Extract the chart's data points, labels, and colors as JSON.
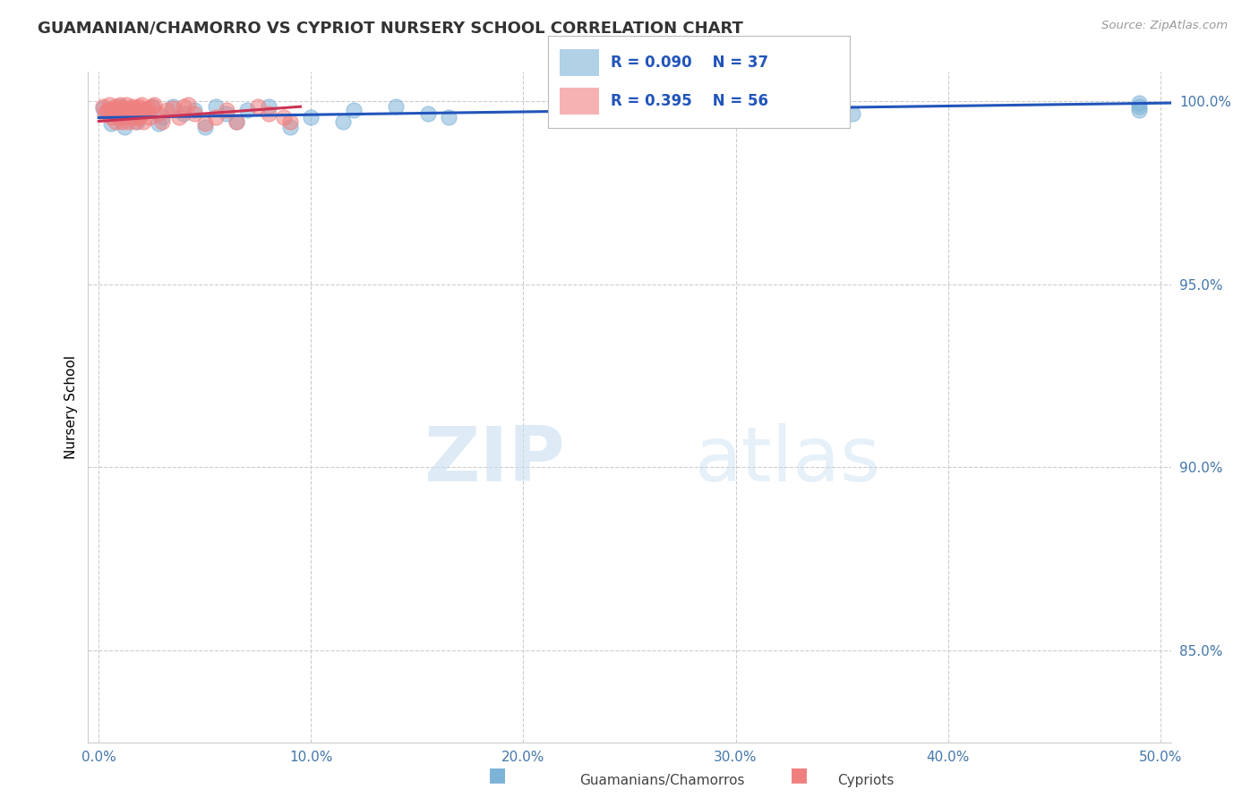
{
  "title": "GUAMANIAN/CHAMORRO VS CYPRIOT NURSERY SCHOOL CORRELATION CHART",
  "source_text": "Source: ZipAtlas.com",
  "ylabel": "Nursery School",
  "xlim": [
    -0.005,
    0.505
  ],
  "ylim": [
    0.825,
    1.008
  ],
  "xtick_labels": [
    "0.0%",
    "",
    "10.0%",
    "",
    "20.0%",
    "",
    "30.0%",
    "",
    "40.0%",
    "",
    "50.0%"
  ],
  "xtick_vals": [
    0.0,
    0.05,
    0.1,
    0.15,
    0.2,
    0.25,
    0.3,
    0.35,
    0.4,
    0.45,
    0.5
  ],
  "ytick_labels": [
    "85.0%",
    "90.0%",
    "95.0%",
    "100.0%"
  ],
  "ytick_vals": [
    0.85,
    0.9,
    0.95,
    1.0
  ],
  "blue_color": "#7EB3D8",
  "pink_color": "#F08080",
  "trend_blue": "#2255BB",
  "trend_pink": "#CC3355",
  "legend_r_blue": "R = 0.090",
  "legend_n_blue": "N = 37",
  "legend_r_pink": "R = 0.395",
  "legend_n_pink": "N = 56",
  "watermark_zip": "ZIP",
  "watermark_atlas": "atlas",
  "blue_points_x": [
    0.002,
    0.004,
    0.006,
    0.008,
    0.01,
    0.012,
    0.014,
    0.016,
    0.018,
    0.02,
    0.022,
    0.025,
    0.028,
    0.03,
    0.035,
    0.04,
    0.045,
    0.05,
    0.055,
    0.06,
    0.065,
    0.07,
    0.08,
    0.09,
    0.1,
    0.115,
    0.12,
    0.14,
    0.155,
    0.165,
    0.31,
    0.32,
    0.345,
    0.355,
    0.49,
    0.49,
    0.49
  ],
  "blue_points_y": [
    0.998,
    0.9965,
    0.994,
    0.997,
    0.9985,
    0.993,
    0.9975,
    0.9955,
    0.9945,
    0.9965,
    0.9975,
    0.9985,
    0.994,
    0.9955,
    0.9985,
    0.9965,
    0.9975,
    0.993,
    0.9985,
    0.9965,
    0.9945,
    0.9975,
    0.9985,
    0.993,
    0.9955,
    0.9945,
    0.9975,
    0.9985,
    0.9965,
    0.9955,
    0.9955,
    0.9975,
    0.9985,
    0.9965,
    0.9995,
    0.9975,
    0.9985
  ],
  "pink_points_x": [
    0.002,
    0.003,
    0.004,
    0.005,
    0.006,
    0.006,
    0.007,
    0.007,
    0.008,
    0.008,
    0.009,
    0.009,
    0.01,
    0.01,
    0.011,
    0.011,
    0.012,
    0.012,
    0.013,
    0.013,
    0.014,
    0.014,
    0.015,
    0.015,
    0.016,
    0.016,
    0.017,
    0.017,
    0.018,
    0.018,
    0.019,
    0.019,
    0.02,
    0.02,
    0.021,
    0.022,
    0.023,
    0.024,
    0.025,
    0.026,
    0.028,
    0.03,
    0.032,
    0.035,
    0.038,
    0.04,
    0.042,
    0.045,
    0.05,
    0.055,
    0.06,
    0.065,
    0.075,
    0.08,
    0.087,
    0.09
  ],
  "pink_points_y": [
    0.9985,
    0.9965,
    0.9975,
    0.999,
    0.9955,
    0.9975,
    0.998,
    0.9965,
    0.9945,
    0.9985,
    0.9955,
    0.9975,
    0.999,
    0.9965,
    0.9975,
    0.9945,
    0.998,
    0.9955,
    0.9975,
    0.999,
    0.9965,
    0.9945,
    0.998,
    0.9975,
    0.9955,
    0.9985,
    0.9965,
    0.9945,
    0.998,
    0.9975,
    0.9955,
    0.9985,
    0.999,
    0.9965,
    0.9945,
    0.9975,
    0.998,
    0.9955,
    0.9985,
    0.999,
    0.9965,
    0.9945,
    0.9975,
    0.998,
    0.9955,
    0.9985,
    0.999,
    0.9965,
    0.994,
    0.9955,
    0.9975,
    0.9945,
    0.9985,
    0.9965,
    0.9955,
    0.9945
  ],
  "blue_trend_x0": 0.0,
  "blue_trend_x1": 0.505,
  "blue_trend_y0": 0.9955,
  "blue_trend_y1": 0.9995,
  "pink_trend_x0": 0.0,
  "pink_trend_x1": 0.095,
  "pink_trend_y0": 0.9945,
  "pink_trend_y1": 0.9985
}
